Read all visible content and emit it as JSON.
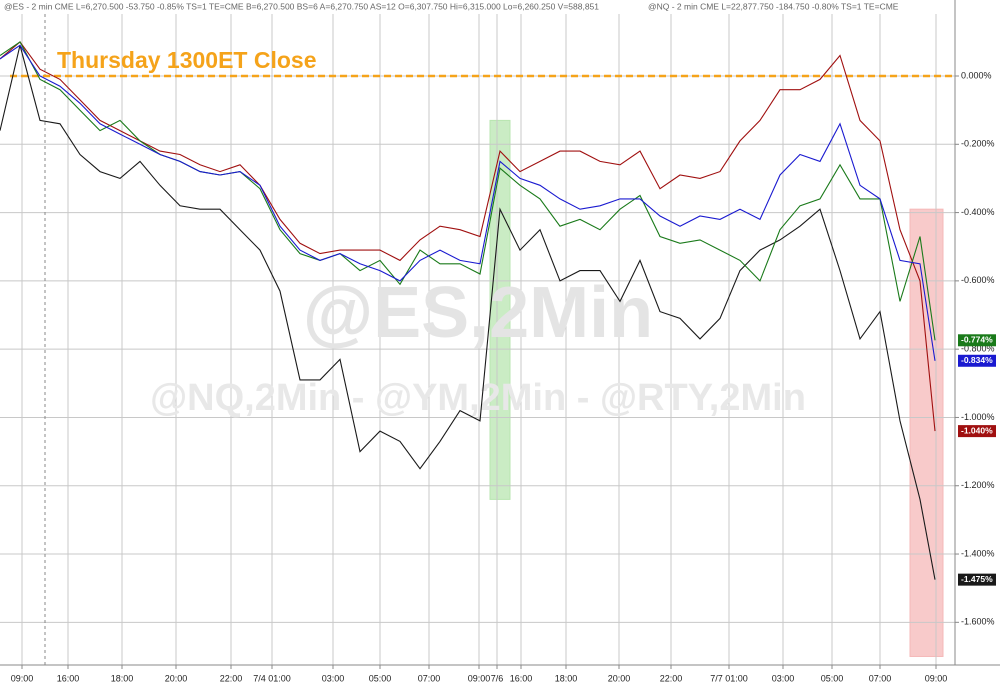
{
  "chart_data": {
    "type": "line",
    "header": [
      "@ES - 2 min  CME  L=6,270.500  -53.750  -0.85%  TS=1  TE=CME  B=6,270.500  BS=6  A=6,270.750  AS=12  O=6,307.750  Hi=6,315.000  Lo=6,260.250  V=588,851",
      "@NQ - 2 min  CME  L=22,877.750  -184.750  -0.80%  TS=1  TE=CME"
    ],
    "annotation": "Thursday 1300ET Close",
    "watermarks": [
      "@ES,2Min",
      "@NQ,2Min - @YM,2Min - @RTY,2Min"
    ],
    "reference_line": {
      "value": 0,
      "color": "#f5a31a"
    },
    "session_breaks": [
      9
    ],
    "highlights": [
      {
        "x": [
          98,
          102
        ],
        "y": [
          -0.13,
          -1.24
        ],
        "color": "#b8e6b0"
      },
      {
        "x": [
          182,
          188.6
        ],
        "y": [
          -0.39,
          -1.7
        ],
        "color": "#f5b8b8"
      }
    ],
    "x": [
      0,
      4,
      8,
      12,
      16,
      20,
      24,
      28,
      32,
      36,
      40,
      44,
      48,
      52,
      56,
      60,
      64,
      68,
      72,
      76,
      80,
      84,
      88,
      92,
      96,
      100,
      104,
      108,
      112,
      116,
      120,
      124,
      128,
      132,
      136,
      140,
      144,
      148,
      152,
      156,
      160,
      164,
      168,
      172,
      176,
      180,
      184,
      187
    ],
    "xlim": [
      0,
      191
    ],
    "xticks": [
      {
        "value": 4.4,
        "label": "09:00"
      },
      {
        "value": 13.6,
        "label": "16:00"
      },
      {
        "value": 24.4,
        "label": "18:00"
      },
      {
        "value": 35.2,
        "label": "20:00"
      },
      {
        "value": 46.2,
        "label": "22:00"
      },
      {
        "value": 54.4,
        "label": "7/4  01:00"
      },
      {
        "value": 66.6,
        "label": "03:00"
      },
      {
        "value": 76,
        "label": "05:00"
      },
      {
        "value": 85.8,
        "label": "07:00"
      },
      {
        "value": 95.8,
        "label": "09:00"
      },
      {
        "value": 99.4,
        "label": "7/6"
      },
      {
        "value": 104.2,
        "label": "16:00"
      },
      {
        "value": 113.2,
        "label": "18:00"
      },
      {
        "value": 123.8,
        "label": "20:00"
      },
      {
        "value": 134.2,
        "label": "22:00"
      },
      {
        "value": 145.8,
        "label": "7/7  01:00"
      },
      {
        "value": 156.6,
        "label": "03:00"
      },
      {
        "value": 166.4,
        "label": "05:00"
      },
      {
        "value": 176,
        "label": "07:00"
      },
      {
        "value": 187.2,
        "label": "09:00"
      }
    ],
    "ylim": [
      0.2226,
      -1.725
    ],
    "yticks": [
      {
        "value": 0,
        "label": "0.000%"
      },
      {
        "value": -0.2,
        "label": "-0.200%"
      },
      {
        "value": -0.4,
        "label": "-0.400%"
      },
      {
        "value": -0.6,
        "label": "-0.600%"
      },
      {
        "value": -0.8,
        "label": "-0.800%"
      },
      {
        "value": -1.0,
        "label": "-1.000%"
      },
      {
        "value": -1.2,
        "label": "-1.200%"
      },
      {
        "value": -1.4,
        "label": "-1.400%"
      },
      {
        "value": -1.6,
        "label": "-1.600%"
      }
    ],
    "grid": true,
    "series": [
      {
        "color": "#1a1a1a",
        "end_label": "-1.475%",
        "values": [
          -0.16,
          0.09,
          -0.13,
          -0.14,
          -0.23,
          -0.28,
          -0.3,
          -0.25,
          -0.32,
          -0.38,
          -0.39,
          -0.39,
          -0.45,
          -0.51,
          -0.63,
          -0.89,
          -0.89,
          -0.83,
          -1.1,
          -1.04,
          -1.07,
          -1.15,
          -1.07,
          -0.98,
          -1.01,
          -0.39,
          -0.51,
          -0.45,
          -0.6,
          -0.57,
          -0.57,
          -0.66,
          -0.54,
          -0.69,
          -0.71,
          -0.77,
          -0.71,
          -0.57,
          -0.51,
          -0.48,
          -0.44,
          -0.39,
          -0.57,
          -0.77,
          -0.69,
          -1.01,
          -1.24,
          -1.475
        ]
      },
      {
        "color": "#a01010",
        "end_label": "-1.040%",
        "values": [
          0.05,
          0.1,
          0.02,
          -0.01,
          -0.07,
          -0.13,
          -0.16,
          -0.19,
          -0.22,
          -0.23,
          -0.26,
          -0.28,
          -0.26,
          -0.32,
          -0.42,
          -0.49,
          -0.52,
          -0.51,
          -0.51,
          -0.51,
          -0.54,
          -0.48,
          -0.44,
          -0.45,
          -0.47,
          -0.22,
          -0.28,
          -0.25,
          -0.22,
          -0.22,
          -0.25,
          -0.26,
          -0.22,
          -0.33,
          -0.29,
          -0.3,
          -0.28,
          -0.19,
          -0.13,
          -0.04,
          -0.04,
          -0.01,
          0.06,
          -0.13,
          -0.19,
          -0.45,
          -0.6,
          -1.04
        ]
      },
      {
        "color": "#1a7a1a",
        "end_label": "-0.774%",
        "values": [
          0.06,
          0.1,
          -0.01,
          -0.04,
          -0.1,
          -0.16,
          -0.13,
          -0.19,
          -0.23,
          -0.25,
          -0.28,
          -0.29,
          -0.28,
          -0.33,
          -0.45,
          -0.52,
          -0.54,
          -0.52,
          -0.57,
          -0.54,
          -0.61,
          -0.51,
          -0.55,
          -0.55,
          -0.58,
          -0.27,
          -0.32,
          -0.36,
          -0.44,
          -0.42,
          -0.45,
          -0.39,
          -0.35,
          -0.47,
          -0.49,
          -0.48,
          -0.51,
          -0.54,
          -0.6,
          -0.45,
          -0.38,
          -0.36,
          -0.26,
          -0.36,
          -0.36,
          -0.66,
          -0.47,
          -0.774
        ]
      },
      {
        "color": "#1a1ad0",
        "end_label": "-0.834%",
        "values": [
          0.05,
          0.09,
          0.0,
          -0.03,
          -0.08,
          -0.14,
          -0.17,
          -0.2,
          -0.23,
          -0.25,
          -0.28,
          -0.29,
          -0.28,
          -0.32,
          -0.44,
          -0.51,
          -0.54,
          -0.52,
          -0.55,
          -0.57,
          -0.6,
          -0.54,
          -0.51,
          -0.54,
          -0.55,
          -0.25,
          -0.3,
          -0.32,
          -0.36,
          -0.39,
          -0.38,
          -0.36,
          -0.36,
          -0.41,
          -0.44,
          -0.41,
          -0.42,
          -0.39,
          -0.42,
          -0.29,
          -0.23,
          -0.25,
          -0.14,
          -0.32,
          -0.36,
          -0.54,
          -0.55,
          -0.834
        ]
      }
    ]
  }
}
